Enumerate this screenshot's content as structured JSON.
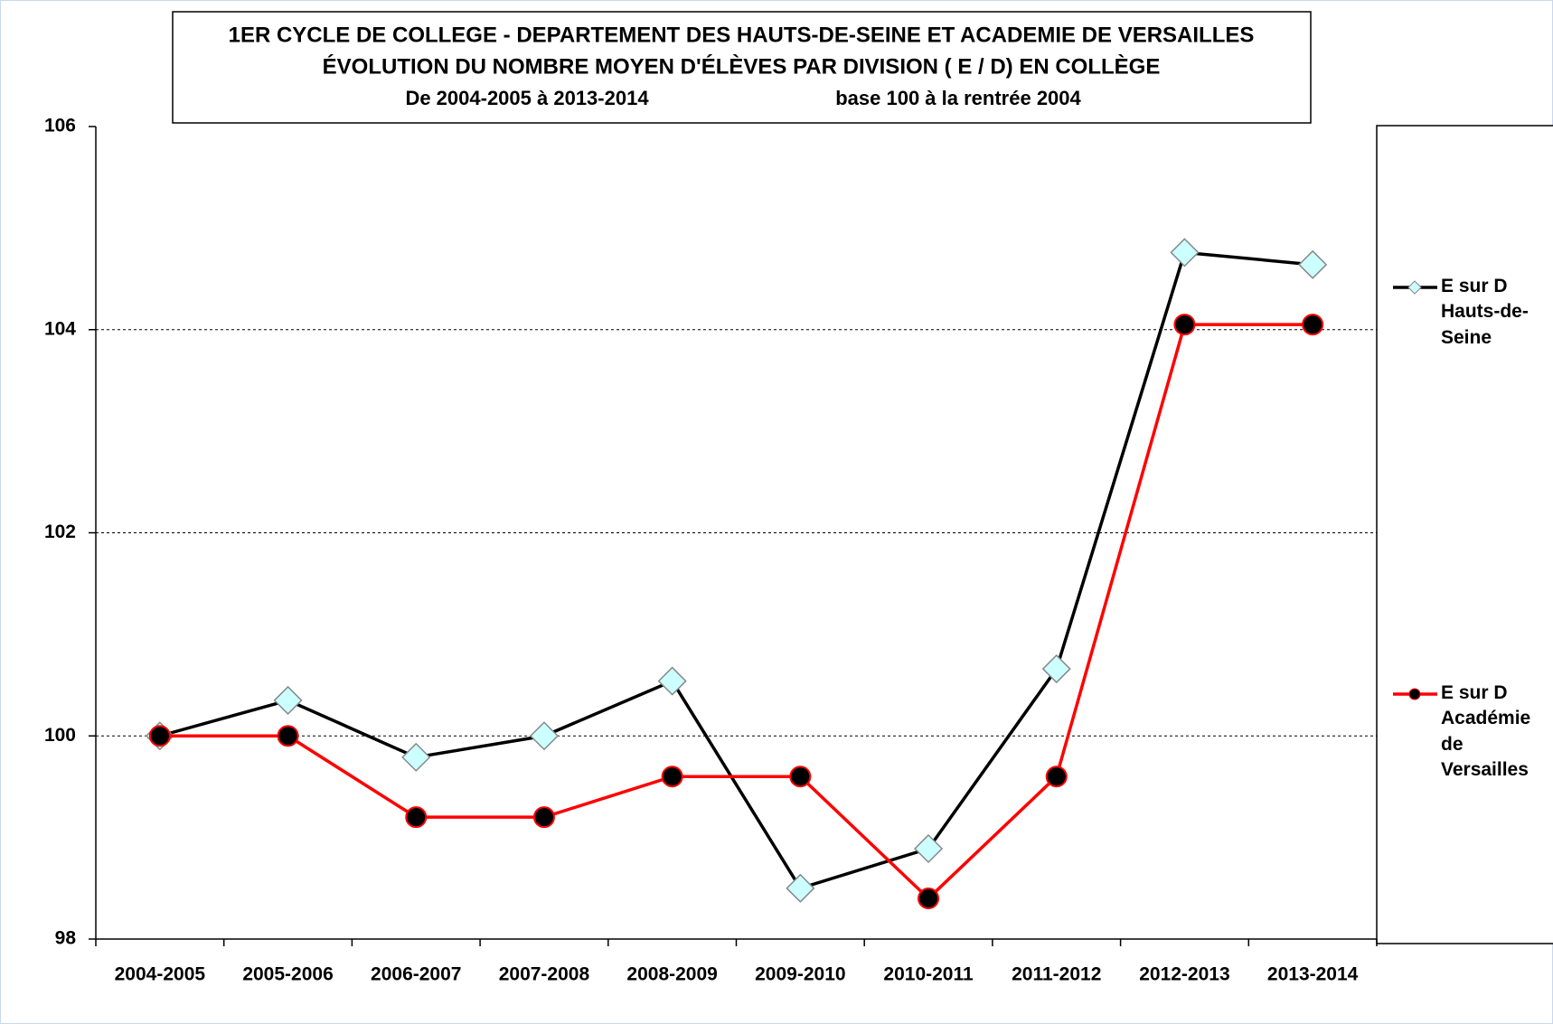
{
  "chart_data": {
    "type": "line",
    "title": [
      "1ER CYCLE DE COLLEGE - DEPARTEMENT DES HAUTS-DE-SEINE ET ACADEMIE DE VERSAILLES",
      "ÉVOLUTION DU NOMBRE MOYEN D'ÉLÈVES PAR DIVISION ( E / D) EN COLLÈGE"
    ],
    "subtitle": [
      "De 2004-2005 à 2013-2014",
      "base 100 à la rentrée 2004"
    ],
    "categories": [
      "2004-2005",
      "2005-2006",
      "2006-2007",
      "2007-2008",
      "2008-2009",
      "2009-2010",
      "2010-2011",
      "2011-2012",
      "2012-2013",
      "2013-2014"
    ],
    "series": [
      {
        "name": "E sur D Hauts-de-Seine",
        "color": "#000000",
        "marker": "diamond",
        "marker_color": "#ccffff",
        "values": [
          100,
          100.35,
          99.79,
          100,
          100.54,
          98.5,
          98.89,
          100.66,
          104.76,
          104.64
        ]
      },
      {
        "name": "E sur D Académie de Versailles",
        "color": "#ff0000",
        "marker": "circle",
        "marker_color": "#000000",
        "values": [
          100,
          100,
          99.2,
          99.2,
          99.6,
          99.6,
          98.4,
          99.6,
          104.05,
          104.05
        ]
      }
    ],
    "ylim": [
      98,
      106
    ],
    "yticks": [
      98,
      100,
      102,
      104,
      106
    ],
    "grid": true
  }
}
